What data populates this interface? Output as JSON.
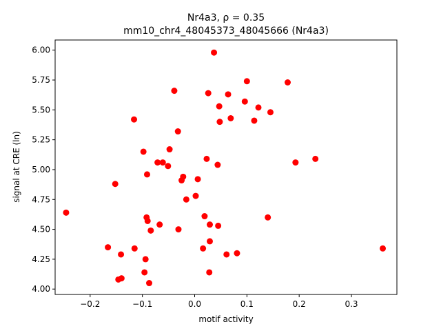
{
  "chart_data": {
    "type": "scatter",
    "title_line1": "Nr4a3, ρ = 0.35",
    "title_line2": "mm10_chr4_48045373_48045666 (Nr4a3)",
    "xlabel": "motif activity",
    "ylabel": "signal at CRE (ln)",
    "xlim": [
      -0.267,
      0.387
    ],
    "ylim": [
      3.955,
      6.085
    ],
    "xticks": [
      -0.2,
      -0.1,
      0.0,
      0.1,
      0.2,
      0.3
    ],
    "xtick_labels": [
      "−0.2",
      "−0.1",
      "0.0",
      "0.1",
      "0.2",
      "0.3"
    ],
    "yticks": [
      4.0,
      4.25,
      4.5,
      4.75,
      5.0,
      5.25,
      5.5,
      5.75,
      6.0
    ],
    "ytick_labels": [
      "4.00",
      "4.25",
      "4.50",
      "4.75",
      "5.00",
      "5.25",
      "5.50",
      "5.75",
      "6.00"
    ],
    "grid": false,
    "legend": "none",
    "marker_color": "#ff0000",
    "points": [
      {
        "x": 0.037,
        "y": 5.98
      },
      {
        "x": 0.1,
        "y": 5.74
      },
      {
        "x": 0.178,
        "y": 5.73
      },
      {
        "x": -0.039,
        "y": 5.66
      },
      {
        "x": 0.026,
        "y": 5.64
      },
      {
        "x": 0.064,
        "y": 5.63
      },
      {
        "x": 0.096,
        "y": 5.57
      },
      {
        "x": 0.047,
        "y": 5.53
      },
      {
        "x": 0.122,
        "y": 5.52
      },
      {
        "x": 0.145,
        "y": 5.48
      },
      {
        "x": 0.069,
        "y": 5.43
      },
      {
        "x": -0.116,
        "y": 5.42
      },
      {
        "x": 0.114,
        "y": 5.41
      },
      {
        "x": 0.048,
        "y": 5.4
      },
      {
        "x": -0.032,
        "y": 5.32
      },
      {
        "x": -0.048,
        "y": 5.17
      },
      {
        "x": -0.098,
        "y": 5.15
      },
      {
        "x": 0.023,
        "y": 5.09
      },
      {
        "x": 0.231,
        "y": 5.09
      },
      {
        "x": -0.071,
        "y": 5.06
      },
      {
        "x": -0.061,
        "y": 5.06
      },
      {
        "x": 0.193,
        "y": 5.06
      },
      {
        "x": 0.044,
        "y": 5.04
      },
      {
        "x": -0.051,
        "y": 5.03
      },
      {
        "x": -0.091,
        "y": 4.96
      },
      {
        "x": -0.022,
        "y": 4.94
      },
      {
        "x": 0.006,
        "y": 4.92
      },
      {
        "x": -0.025,
        "y": 4.91
      },
      {
        "x": -0.152,
        "y": 4.88
      },
      {
        "x": 0.002,
        "y": 4.78
      },
      {
        "x": -0.016,
        "y": 4.75
      },
      {
        "x": -0.246,
        "y": 4.64
      },
      {
        "x": 0.019,
        "y": 4.61
      },
      {
        "x": 0.14,
        "y": 4.6
      },
      {
        "x": -0.092,
        "y": 4.6
      },
      {
        "x": -0.09,
        "y": 4.57
      },
      {
        "x": -0.067,
        "y": 4.54
      },
      {
        "x": 0.029,
        "y": 4.54
      },
      {
        "x": 0.045,
        "y": 4.53
      },
      {
        "x": -0.084,
        "y": 4.49
      },
      {
        "x": -0.031,
        "y": 4.5
      },
      {
        "x": 0.029,
        "y": 4.4
      },
      {
        "x": -0.166,
        "y": 4.35
      },
      {
        "x": -0.115,
        "y": 4.34
      },
      {
        "x": 0.016,
        "y": 4.34
      },
      {
        "x": 0.36,
        "y": 4.34
      },
      {
        "x": 0.081,
        "y": 4.3
      },
      {
        "x": -0.141,
        "y": 4.29
      },
      {
        "x": 0.061,
        "y": 4.29
      },
      {
        "x": -0.094,
        "y": 4.25
      },
      {
        "x": 0.028,
        "y": 4.14
      },
      {
        "x": -0.096,
        "y": 4.14
      },
      {
        "x": -0.14,
        "y": 4.09
      },
      {
        "x": -0.146,
        "y": 4.08
      },
      {
        "x": -0.087,
        "y": 4.05
      }
    ]
  }
}
